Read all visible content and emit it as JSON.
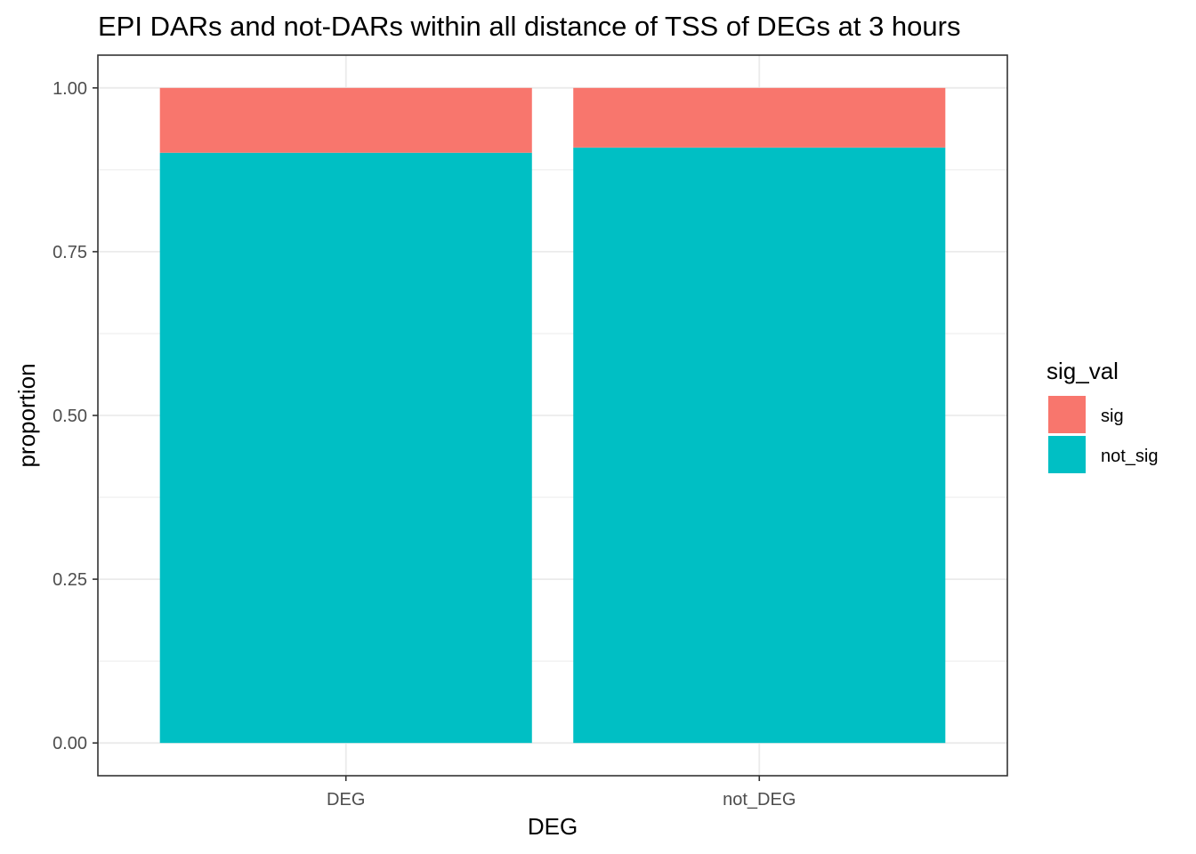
{
  "chart_data": {
    "type": "bar",
    "stacked": true,
    "title": "EPI DARs and not-DARs within all distance of TSS of DEGs at 3 hours",
    "xlabel": "DEG",
    "ylabel": "proportion",
    "categories": [
      "DEG",
      "not_DEG"
    ],
    "series": [
      {
        "name": "sig",
        "color": "#F8766D",
        "values": [
          0.099,
          0.091
        ]
      },
      {
        "name": "not_sig",
        "color": "#00BFC4",
        "values": [
          0.901,
          0.909
        ]
      }
    ],
    "ylim": [
      -0.05,
      1.05
    ],
    "yticks": [
      "0.00",
      "0.25",
      "0.50",
      "0.75",
      "1.00"
    ],
    "ytick_values": [
      0,
      0.25,
      0.5,
      0.75,
      1.0
    ],
    "grid": true,
    "legend": {
      "title": "sig_val",
      "position": "right",
      "entries": [
        "sig",
        "not_sig"
      ]
    }
  }
}
